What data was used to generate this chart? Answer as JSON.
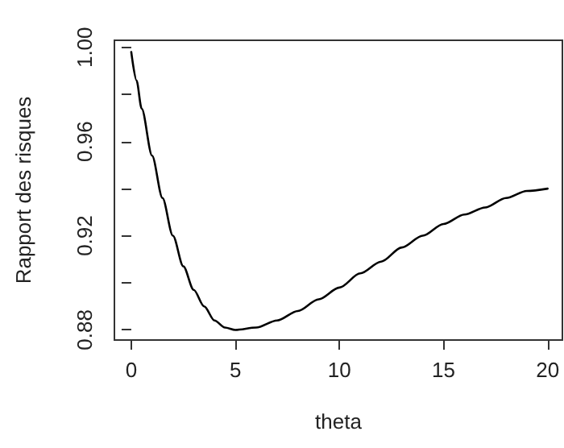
{
  "chart_data": {
    "type": "line",
    "xlabel": "theta",
    "ylabel": "Rapport des risques",
    "x": [
      0,
      0.25,
      0.5,
      1,
      1.5,
      2,
      2.5,
      3,
      3.5,
      4,
      4.5,
      5,
      6,
      7,
      8,
      9,
      10,
      11,
      12,
      13,
      14,
      15,
      16,
      17,
      18,
      19,
      20
    ],
    "values": [
      0.998,
      0.986,
      0.974,
      0.954,
      0.936,
      0.92,
      0.907,
      0.897,
      0.89,
      0.884,
      0.881,
      0.88,
      0.881,
      0.884,
      0.888,
      0.893,
      0.898,
      0.904,
      0.909,
      0.915,
      0.92,
      0.925,
      0.929,
      0.932,
      0.936,
      0.939,
      0.94
    ],
    "color": "#000000",
    "marker": "none",
    "line_style": "solid",
    "grid": false,
    "xlim": [
      -0.81,
      20.71
    ],
    "xticks": [
      0,
      5,
      10,
      15,
      20
    ],
    "ylim": [
      0.8757,
      1.003
    ],
    "yticks": [
      {
        "value": 0.88,
        "label": "0.88"
      },
      {
        "value": 0.9,
        "label": null
      },
      {
        "value": 0.92,
        "label": "0.92"
      },
      {
        "value": 0.94,
        "label": null
      },
      {
        "value": 0.96,
        "label": "0.96"
      },
      {
        "value": 0.98,
        "label": null
      },
      {
        "value": 1.0,
        "label": "1.00"
      }
    ]
  }
}
